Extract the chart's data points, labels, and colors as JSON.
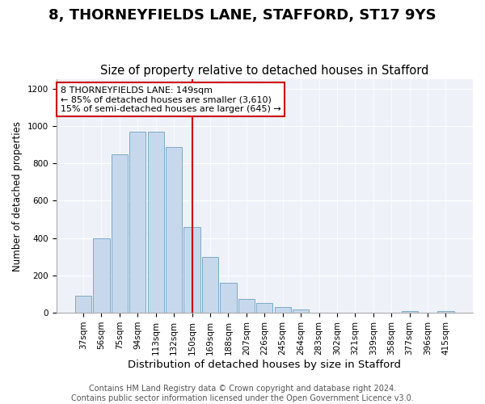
{
  "title": "8, THORNEYFIELDS LANE, STAFFORD, ST17 9YS",
  "subtitle": "Size of property relative to detached houses in Stafford",
  "xlabel": "Distribution of detached houses by size in Stafford",
  "ylabel": "Number of detached properties",
  "categories": [
    "37sqm",
    "56sqm",
    "75sqm",
    "94sqm",
    "113sqm",
    "132sqm",
    "150sqm",
    "169sqm",
    "188sqm",
    "207sqm",
    "226sqm",
    "245sqm",
    "264sqm",
    "283sqm",
    "302sqm",
    "321sqm",
    "339sqm",
    "358sqm",
    "377sqm",
    "396sqm",
    "415sqm"
  ],
  "values": [
    90,
    400,
    850,
    970,
    970,
    885,
    460,
    300,
    160,
    75,
    52,
    30,
    18,
    0,
    0,
    0,
    0,
    0,
    10,
    0,
    10
  ],
  "bar_color": "#c8d8ec",
  "bar_edge_color": "#7aaac8",
  "vline_x": 6,
  "vline_color": "#cc0000",
  "annotation_text": "8 THORNEYFIELDS LANE: 149sqm\n← 85% of detached houses are smaller (3,610)\n15% of semi-detached houses are larger (645) →",
  "annotation_box_facecolor": "#ffffff",
  "annotation_box_edgecolor": "#cc0000",
  "footer": "Contains HM Land Registry data © Crown copyright and database right 2024.\nContains public sector information licensed under the Open Government Licence v3.0.",
  "ylim": [
    0,
    1250
  ],
  "yticks": [
    0,
    200,
    400,
    600,
    800,
    1000,
    1200
  ],
  "title_fontsize": 13,
  "subtitle_fontsize": 10.5,
  "xlabel_fontsize": 9.5,
  "ylabel_fontsize": 8.5,
  "tick_fontsize": 7.5,
  "annotation_fontsize": 8,
  "footer_fontsize": 7,
  "bg_color": "#eef2f8",
  "grid_color": "#ffffff"
}
